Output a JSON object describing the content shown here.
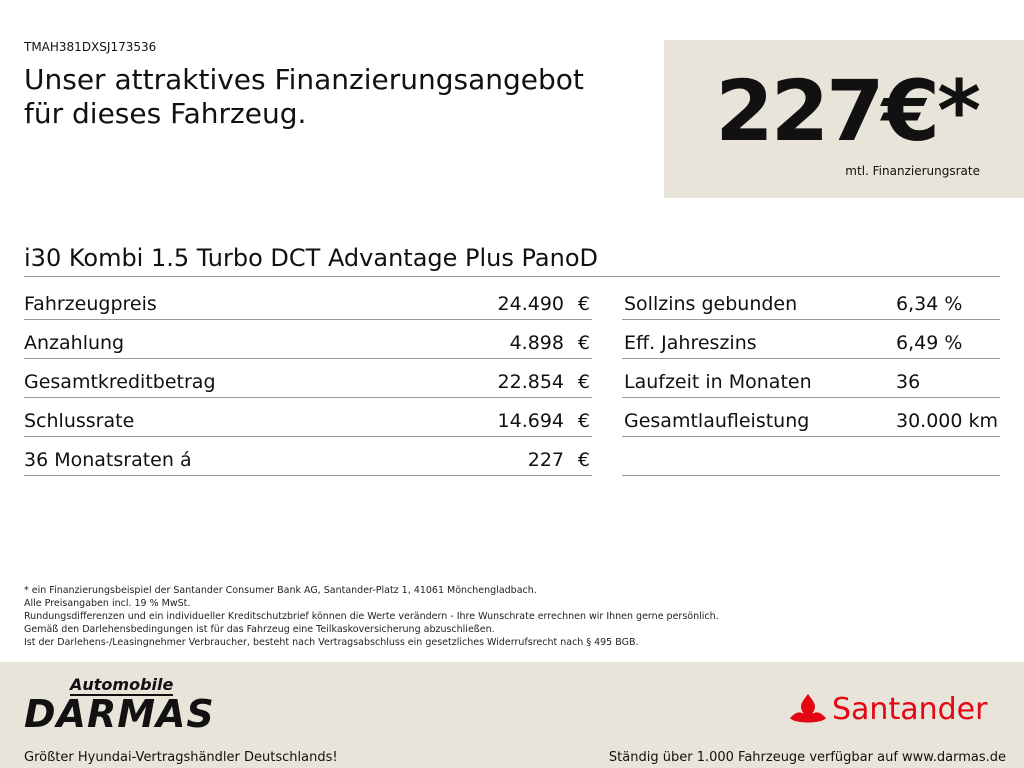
{
  "header": {
    "vin": "TMAH381DXSJ173536",
    "headline": [
      "Unser attraktives Finanzierungsangebot",
      "für dieses Fahrzeug."
    ]
  },
  "price_box": {
    "price": "227€*",
    "caption": "mtl. Finanzierungsrate"
  },
  "model": "i30 Kombi 1.5 Turbo DCT Advantage Plus PanoD",
  "left_table": {
    "rows": [
      [
        "Fahrzeugpreis",
        "24.490",
        "€"
      ],
      [
        "Anzahlung",
        "4.898",
        "€"
      ],
      [
        "Gesamtkreditbetrag",
        "22.854",
        "€"
      ],
      [
        "Schlussrate",
        "14.694",
        "€"
      ],
      [
        "36 Monatsraten á",
        "227",
        "€"
      ]
    ]
  },
  "right_table": {
    "rows": [
      [
        "Sollzins gebunden",
        "6,34 %"
      ],
      [
        "Eff. Jahreszins",
        "6,49 %"
      ],
      [
        "Laufzeit in Monaten",
        "36"
      ],
      [
        "Gesamtlaufleistung",
        "30.000 km"
      ]
    ]
  },
  "footnotes": [
    "* ein Finanzierungsbeispiel der Santander Consumer Bank AG, Santander-Platz 1, 41061 Mönchengladbach.",
    "Alle Preisangaben incl. 19 % MwSt.",
    "Rundungsdifferenzen und ein individueller Kreditschutzbrief können die Werte verändern - Ihre Wunschrate errechnen wir Ihnen gerne persönlich.",
    "Gemäß den Darlehensbedingungen ist für das Fahrzeug eine Teilkaskoversicherung abzuschließen.",
    "Ist der Darlehens-/Leasingnehmer Verbraucher, besteht nach Vertragsabschluss ein gesetzliches Widerrufsrecht nach § 495 BGB."
  ],
  "footer": {
    "dealer_small": "Automobile",
    "dealer_name": "DARMAS",
    "tagline": "Größter Hyundai-Vertragshändler Deutschlands!",
    "bank": "Santander",
    "stock_note": "Ständig über 1.000 Fahrzeuge verfügbar auf www.darmas.de"
  }
}
